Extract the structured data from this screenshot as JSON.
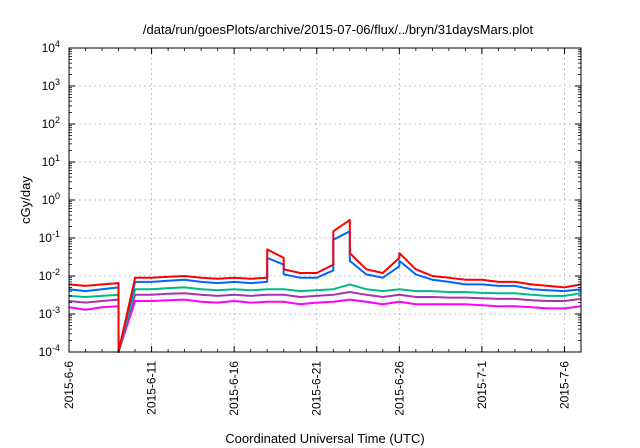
{
  "chart_data": {
    "type": "line",
    "title": "/data/run/goesPlots/archive/2015-07-06/flux/../bryn/31daysMars.plot",
    "xlabel": "Coordinated Universal Time (UTC)",
    "ylabel": "cGy/day",
    "yscale": "log",
    "ylim": [
      0.0001,
      10000
    ],
    "xlim": [
      "2015-06-06",
      "2015-07-07"
    ],
    "grid": true,
    "y_ticks": [
      {
        "value": 0.0001,
        "base": "10",
        "exp": "-4"
      },
      {
        "value": 0.001,
        "base": "10",
        "exp": "-3"
      },
      {
        "value": 0.01,
        "base": "10",
        "exp": "-2"
      },
      {
        "value": 0.1,
        "base": "10",
        "exp": "-1"
      },
      {
        "value": 1,
        "base": "10",
        "exp": "0"
      },
      {
        "value": 10,
        "base": "10",
        "exp": "1"
      },
      {
        "value": 100,
        "base": "10",
        "exp": "2"
      },
      {
        "value": 1000,
        "base": "10",
        "exp": "3"
      },
      {
        "value": 10000,
        "base": "10",
        "exp": "4"
      }
    ],
    "x_ticks": [
      {
        "date": "2015-06-06",
        "label": "2015-6-6"
      },
      {
        "date": "2015-06-11",
        "label": "2015-6-11"
      },
      {
        "date": "2015-06-16",
        "label": "2015-6-16"
      },
      {
        "date": "2015-06-21",
        "label": "2015-6-21"
      },
      {
        "date": "2015-06-26",
        "label": "2015-6-26"
      },
      {
        "date": "2015-07-01",
        "label": "2015-7-1"
      },
      {
        "date": "2015-07-06",
        "label": "2015-7-6"
      }
    ],
    "x_minor_tick_dates": [
      "2015-06-07",
      "2015-06-08",
      "2015-06-09",
      "2015-06-10",
      "2015-06-12",
      "2015-06-13",
      "2015-06-14",
      "2015-06-15",
      "2015-06-17",
      "2015-06-18",
      "2015-06-19",
      "2015-06-20",
      "2015-06-22",
      "2015-06-23",
      "2015-06-24",
      "2015-06-25",
      "2015-06-27",
      "2015-06-28",
      "2015-06-29",
      "2015-06-30",
      "2015-07-02",
      "2015-07-03",
      "2015-07-04",
      "2015-07-05",
      "2015-07-07"
    ],
    "series": [
      {
        "color": "#ff0000",
        "x": [
          "2015-06-06",
          "2015-06-07",
          "2015-06-08",
          "2015-06-09",
          "2015-06-09",
          "2015-06-10",
          "2015-06-11",
          "2015-06-12",
          "2015-06-13",
          "2015-06-14",
          "2015-06-15",
          "2015-06-16",
          "2015-06-17",
          "2015-06-18",
          "2015-06-18",
          "2015-06-19",
          "2015-06-19",
          "2015-06-20",
          "2015-06-21",
          "2015-06-22",
          "2015-06-22",
          "2015-06-23",
          "2015-06-23",
          "2015-06-24",
          "2015-06-25",
          "2015-06-26",
          "2015-06-26",
          "2015-06-27",
          "2015-06-28",
          "2015-06-29",
          "2015-06-30",
          "2015-07-01",
          "2015-07-02",
          "2015-07-03",
          "2015-07-04",
          "2015-07-05",
          "2015-07-06",
          "2015-07-07"
        ],
        "values": [
          0.006,
          0.0055,
          0.006,
          0.0065,
          0.0001,
          0.009,
          0.009,
          0.0095,
          0.01,
          0.009,
          0.0085,
          0.009,
          0.0085,
          0.009,
          0.05,
          0.03,
          0.015,
          0.012,
          0.012,
          0.02,
          0.15,
          0.3,
          0.04,
          0.015,
          0.012,
          0.03,
          0.04,
          0.015,
          0.01,
          0.009,
          0.008,
          0.008,
          0.007,
          0.007,
          0.006,
          0.0055,
          0.005,
          0.006
        ]
      },
      {
        "color": "#0066ff",
        "x": [
          "2015-06-06",
          "2015-06-07",
          "2015-06-08",
          "2015-06-09",
          "2015-06-09",
          "2015-06-10",
          "2015-06-11",
          "2015-06-12",
          "2015-06-13",
          "2015-06-14",
          "2015-06-15",
          "2015-06-16",
          "2015-06-17",
          "2015-06-18",
          "2015-06-18",
          "2015-06-19",
          "2015-06-19",
          "2015-06-20",
          "2015-06-21",
          "2015-06-22",
          "2015-06-22",
          "2015-06-23",
          "2015-06-23",
          "2015-06-24",
          "2015-06-25",
          "2015-06-26",
          "2015-06-26",
          "2015-06-27",
          "2015-06-28",
          "2015-06-29",
          "2015-06-30",
          "2015-07-01",
          "2015-07-02",
          "2015-07-03",
          "2015-07-04",
          "2015-07-05",
          "2015-07-06",
          "2015-07-07"
        ],
        "values": [
          0.0045,
          0.004,
          0.0045,
          0.005,
          0.0001,
          0.007,
          0.007,
          0.0075,
          0.008,
          0.007,
          0.0065,
          0.007,
          0.0065,
          0.007,
          0.03,
          0.02,
          0.011,
          0.009,
          0.009,
          0.014,
          0.09,
          0.15,
          0.025,
          0.011,
          0.009,
          0.018,
          0.025,
          0.011,
          0.008,
          0.007,
          0.006,
          0.006,
          0.0055,
          0.0055,
          0.0045,
          0.0042,
          0.004,
          0.0045
        ]
      },
      {
        "color": "#00bb88",
        "x": [
          "2015-06-06",
          "2015-06-07",
          "2015-06-08",
          "2015-06-09",
          "2015-06-09",
          "2015-06-10",
          "2015-06-11",
          "2015-06-12",
          "2015-06-13",
          "2015-06-14",
          "2015-06-15",
          "2015-06-16",
          "2015-06-17",
          "2015-06-18",
          "2015-06-19",
          "2015-06-20",
          "2015-06-21",
          "2015-06-22",
          "2015-06-23",
          "2015-06-24",
          "2015-06-25",
          "2015-06-26",
          "2015-06-27",
          "2015-06-28",
          "2015-06-29",
          "2015-06-30",
          "2015-07-01",
          "2015-07-02",
          "2015-07-03",
          "2015-07-04",
          "2015-07-05",
          "2015-07-06",
          "2015-07-07"
        ],
        "values": [
          0.003,
          0.0028,
          0.003,
          0.0032,
          0.0001,
          0.0045,
          0.0045,
          0.0048,
          0.005,
          0.0045,
          0.0042,
          0.0045,
          0.0042,
          0.0045,
          0.0045,
          0.004,
          0.0042,
          0.0045,
          0.006,
          0.0045,
          0.004,
          0.0045,
          0.004,
          0.004,
          0.0038,
          0.0038,
          0.0036,
          0.0035,
          0.0035,
          0.0032,
          0.003,
          0.003,
          0.0035
        ]
      },
      {
        "color": "#aa33aa",
        "x": [
          "2015-06-06",
          "2015-06-07",
          "2015-06-08",
          "2015-06-09",
          "2015-06-09",
          "2015-06-10",
          "2015-06-11",
          "2015-06-12",
          "2015-06-13",
          "2015-06-14",
          "2015-06-15",
          "2015-06-16",
          "2015-06-17",
          "2015-06-18",
          "2015-06-19",
          "2015-06-20",
          "2015-06-21",
          "2015-06-22",
          "2015-06-23",
          "2015-06-24",
          "2015-06-25",
          "2015-06-26",
          "2015-06-27",
          "2015-06-28",
          "2015-06-29",
          "2015-06-30",
          "2015-07-01",
          "2015-07-02",
          "2015-07-03",
          "2015-07-04",
          "2015-07-05",
          "2015-07-06",
          "2015-07-07"
        ],
        "values": [
          0.0022,
          0.002,
          0.0022,
          0.0024,
          0.0001,
          0.0032,
          0.0032,
          0.0034,
          0.0035,
          0.0032,
          0.003,
          0.0032,
          0.003,
          0.0032,
          0.0032,
          0.0028,
          0.003,
          0.0032,
          0.0038,
          0.0032,
          0.0028,
          0.0032,
          0.0028,
          0.0028,
          0.0027,
          0.0027,
          0.0026,
          0.0025,
          0.0025,
          0.0023,
          0.0022,
          0.0022,
          0.0025
        ]
      },
      {
        "color": "#ff00ff",
        "x": [
          "2015-06-06",
          "2015-06-07",
          "2015-06-08",
          "2015-06-09",
          "2015-06-09",
          "2015-06-10",
          "2015-06-11",
          "2015-06-12",
          "2015-06-13",
          "2015-06-14",
          "2015-06-15",
          "2015-06-16",
          "2015-06-17",
          "2015-06-18",
          "2015-06-19",
          "2015-06-20",
          "2015-06-21",
          "2015-06-22",
          "2015-06-23",
          "2015-06-24",
          "2015-06-25",
          "2015-06-26",
          "2015-06-27",
          "2015-06-28",
          "2015-06-29",
          "2015-06-30",
          "2015-07-01",
          "2015-07-02",
          "2015-07-03",
          "2015-07-04",
          "2015-07-05",
          "2015-07-06",
          "2015-07-07"
        ],
        "values": [
          0.0015,
          0.0013,
          0.0015,
          0.0016,
          0.0001,
          0.0022,
          0.0022,
          0.0023,
          0.0024,
          0.0021,
          0.002,
          0.0022,
          0.002,
          0.0021,
          0.0021,
          0.0018,
          0.002,
          0.0021,
          0.0024,
          0.0021,
          0.0018,
          0.0021,
          0.0018,
          0.0018,
          0.0018,
          0.0018,
          0.0017,
          0.0016,
          0.0016,
          0.0015,
          0.0014,
          0.0014,
          0.0016
        ]
      }
    ]
  }
}
